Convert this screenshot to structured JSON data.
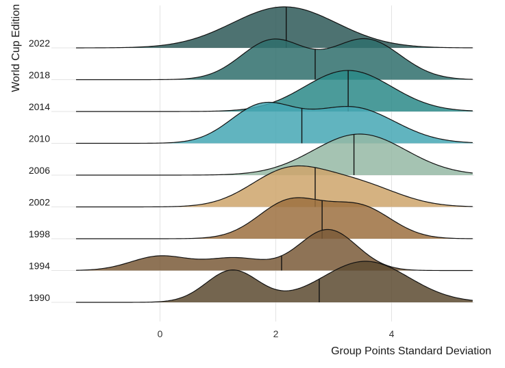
{
  "chart_data": {
    "type": "ridgeline",
    "xlabel": "Group Points Standard Deviation",
    "ylabel": "World Cup Edition",
    "xlim": [
      -1.45,
      5.4
    ],
    "x_ticks": [
      0,
      2,
      4
    ],
    "x_tick_labels": [
      "0",
      "2",
      "4"
    ],
    "grid": true,
    "legend": "none",
    "series": [
      {
        "name": "1990",
        "color": "#5c4a30",
        "median": 2.75,
        "peaks": [
          {
            "mu": 1.25,
            "sigma": 0.45,
            "height": 0.78
          },
          {
            "mu": 3.55,
            "sigma": 0.75,
            "height": 1.0
          }
        ]
      },
      {
        "name": "1994",
        "color": "#7a5a38",
        "median": 2.1,
        "peaks": [
          {
            "mu": 0.0,
            "sigma": 0.5,
            "height": 0.35
          },
          {
            "mu": 1.3,
            "sigma": 0.5,
            "height": 0.3
          },
          {
            "mu": 2.9,
            "sigma": 0.5,
            "height": 1.0
          }
        ]
      },
      {
        "name": "1998",
        "color": "#9c7040",
        "median": 2.8,
        "peaks": [
          {
            "mu": 2.25,
            "sigma": 0.55,
            "height": 0.95
          },
          {
            "mu": 3.45,
            "sigma": 0.55,
            "height": 0.8
          }
        ]
      },
      {
        "name": "2002",
        "color": "#cea56b",
        "median": 2.68,
        "peaks": [
          {
            "mu": 2.2,
            "sigma": 0.65,
            "height": 0.95
          },
          {
            "mu": 3.4,
            "sigma": 0.7,
            "height": 0.6
          }
        ]
      },
      {
        "name": "2006",
        "color": "#95b9a4",
        "median": 3.35,
        "peaks": [
          {
            "mu": 3.45,
            "sigma": 0.8,
            "height": 1.0
          }
        ]
      },
      {
        "name": "2010",
        "color": "#45a7b4",
        "median": 2.45,
        "peaks": [
          {
            "mu": 1.75,
            "sigma": 0.55,
            "height": 0.85
          },
          {
            "mu": 3.3,
            "sigma": 0.75,
            "height": 0.85
          }
        ]
      },
      {
        "name": "2014",
        "color": "#2b8a88",
        "median": 3.25,
        "peaks": [
          {
            "mu": 3.25,
            "sigma": 0.75,
            "height": 1.0
          }
        ]
      },
      {
        "name": "2018",
        "color": "#2f6e6c",
        "median": 2.68,
        "peaks": [
          {
            "mu": 1.95,
            "sigma": 0.55,
            "height": 0.8
          },
          {
            "mu": 3.55,
            "sigma": 0.6,
            "height": 0.82
          }
        ]
      },
      {
        "name": "2022",
        "color": "#2e5958",
        "median": 2.18,
        "peaks": [
          {
            "mu": 2.15,
            "sigma": 0.9,
            "height": 1.0
          }
        ]
      }
    ]
  }
}
